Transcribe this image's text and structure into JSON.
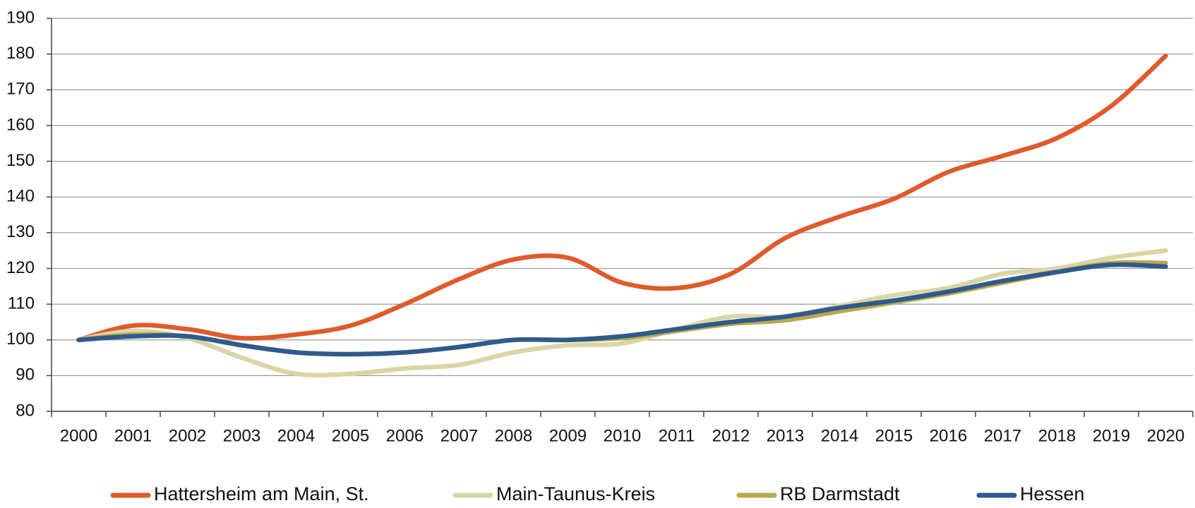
{
  "chart_data": {
    "type": "line",
    "categories": [
      "2000",
      "2001",
      "2002",
      "2003",
      "2004",
      "2005",
      "2006",
      "2007",
      "2008",
      "2009",
      "2010",
      "2011",
      "2012",
      "2013",
      "2014",
      "2015",
      "2016",
      "2017",
      "2018",
      "2019",
      "2020"
    ],
    "series": [
      {
        "name": "Hattersheim am Main, St.",
        "color": "#e05a2b",
        "values": [
          100,
          104,
          103,
          100.5,
          101.5,
          104,
          110,
          117,
          122.5,
          123,
          116,
          114.5,
          118.5,
          128.5,
          134.5,
          139.5,
          147,
          151.5,
          156.5,
          165.5,
          179.5
        ]
      },
      {
        "name": "Main-Taunus-Kreis",
        "color": "#dbd5a6",
        "values": [
          100,
          102.5,
          100.5,
          95,
          90.5,
          90.5,
          92,
          93,
          96.5,
          98.5,
          99,
          103,
          106.5,
          106.5,
          109.5,
          112.5,
          114.5,
          118.5,
          120,
          123,
          125
        ]
      },
      {
        "name": "RB Darmstadt",
        "color": "#b9a94c",
        "values": [
          100,
          101.5,
          101,
          98.5,
          96.5,
          96,
          96.5,
          98,
          100,
          100,
          100.5,
          102.5,
          104.5,
          105.5,
          108,
          110.5,
          113,
          116,
          119,
          121.5,
          121.5
        ]
      },
      {
        "name": "Hessen",
        "color": "#2f5a8c",
        "values": [
          100,
          101,
          101,
          98.5,
          96.5,
          96,
          96.5,
          98,
          100,
          100,
          101,
          103,
          105,
          106.5,
          109,
          111,
          113.5,
          116.5,
          119,
          121,
          120.5
        ]
      }
    ],
    "ylim": [
      80,
      190
    ],
    "yticks": [
      80,
      90,
      100,
      110,
      120,
      130,
      140,
      150,
      160,
      170,
      180,
      190
    ],
    "grid": true,
    "legend": "bottom"
  }
}
